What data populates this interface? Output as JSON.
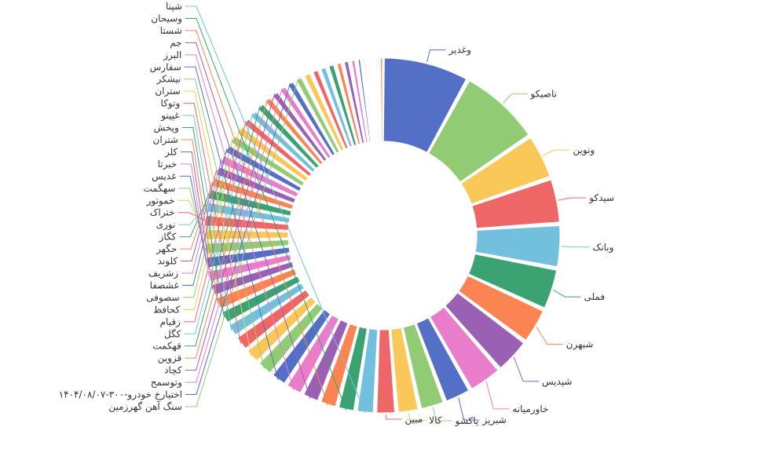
{
  "chart_data": {
    "type": "pie",
    "variant": "donut",
    "title": "",
    "colors": [
      "#5470c6",
      "#91cc75",
      "#fac858",
      "#ee6666",
      "#73c0de",
      "#3ba272",
      "#fc8452",
      "#9a60b4",
      "#ea7ccc"
    ],
    "categories": [
      "وغدیر",
      "تاصیکو",
      "ونوین",
      "سیدکو",
      "وبانک",
      "فملی",
      "شبهرن",
      "شپدیس",
      "خاورمیانه",
      "شبریز",
      "پاکشو",
      "کالا",
      "مبین",
      "شپنا",
      "وسیحان",
      "شستا",
      "جم",
      "البرز",
      "سفارس",
      "نیشکر",
      "ستران",
      "وتوکا",
      "غپینو",
      "وپخش",
      "شتران",
      "کلر",
      "خبرتا",
      "غدیس",
      "سهگمت",
      "خموتور",
      "ختراک",
      "نوری",
      "کگاز",
      "حگهر",
      "کلوند",
      "زشریف",
      "غشصفا",
      "سصوفی",
      "کحافظ",
      "زقیام",
      "کگل",
      "قهکمت",
      "قزوین",
      "کچاد",
      "وتوسمح",
      "اختیارخ خودرو-۳۰۰-۱۴۰۴/۰۸/۰۷",
      "سنگ آهن گهرزمین",
      "",
      "",
      "",
      "",
      "",
      "",
      "",
      "",
      "",
      "",
      "",
      "",
      "",
      ""
    ],
    "values": [
      9.5,
      9.0,
      5.0,
      5.0,
      4.8,
      4.6,
      4.0,
      4.0,
      3.8,
      3.0,
      2.8,
      2.5,
      2.3,
      2.1,
      2.0,
      2.0,
      2.0,
      2.0,
      1.9,
      1.9,
      1.8,
      1.8,
      1.6,
      1.6,
      1.6,
      1.5,
      1.5,
      1.5,
      1.5,
      1.5,
      1.5,
      1.4,
      1.4,
      1.3,
      1.3,
      1.3,
      1.2,
      1.2,
      1.2,
      1.1,
      1.1,
      1.1,
      1.0,
      1.0,
      1.0,
      1.0,
      1.0,
      1.0,
      0.9,
      0.9,
      0.9,
      0.8,
      0.8,
      0.7,
      0.6,
      0.5,
      0.5,
      0.4,
      0.3,
      0.3,
      0.2
    ]
  }
}
